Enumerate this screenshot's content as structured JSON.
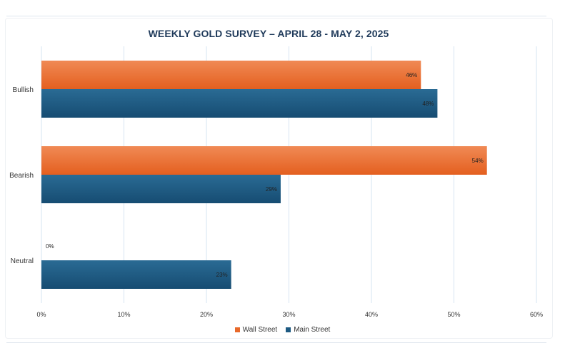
{
  "chart_data": {
    "type": "bar",
    "orientation": "horizontal",
    "title": "WEEKLY GOLD SURVEY – APRIL 28 - MAY 2, 2025",
    "categories": [
      "Bullish",
      "Bearish",
      "Neutral"
    ],
    "series": [
      {
        "name": "Wall Street",
        "color": "#e8692a",
        "values": [
          46,
          54,
          0
        ],
        "labels": [
          "46%",
          "54%",
          "0%"
        ]
      },
      {
        "name": "Main Street",
        "color": "#1d5a82",
        "values": [
          48,
          29,
          23
        ],
        "labels": [
          "48%",
          "29%",
          "23%"
        ]
      }
    ],
    "xlim": [
      0,
      60
    ],
    "xticks": [
      "0%",
      "10%",
      "20%",
      "30%",
      "40%",
      "50%",
      "60%"
    ],
    "grid": true,
    "legend_position": "bottom"
  }
}
